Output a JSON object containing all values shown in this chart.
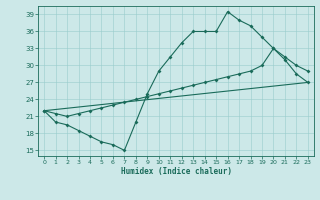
{
  "xlabel": "Humidex (Indice chaleur)",
  "xlim": [
    -0.5,
    23.5
  ],
  "ylim": [
    14,
    40.5
  ],
  "yticks": [
    15,
    18,
    21,
    24,
    27,
    30,
    33,
    36,
    39
  ],
  "xticks": [
    0,
    1,
    2,
    3,
    4,
    5,
    6,
    7,
    8,
    9,
    10,
    11,
    12,
    13,
    14,
    15,
    16,
    17,
    18,
    19,
    20,
    21,
    22,
    23
  ],
  "bg_color": "#cce8e8",
  "grid_color": "#99cccc",
  "line_color": "#1a6b5a",
  "line1_x": [
    0,
    1,
    2,
    3,
    4,
    5,
    6,
    7,
    8,
    9,
    10,
    11,
    12,
    13,
    14,
    15,
    16,
    17,
    18,
    19,
    20,
    21,
    22,
    23
  ],
  "line1_y": [
    22,
    20,
    19.5,
    18.5,
    17.5,
    16.5,
    16.0,
    15.0,
    20.0,
    25.0,
    29.0,
    31.5,
    34.0,
    36.0,
    36.0,
    36.0,
    39.5,
    38.0,
    37.0,
    35.0,
    33.0,
    31.0,
    28.5,
    27.0
  ],
  "line2_x": [
    0,
    23
  ],
  "line2_y": [
    22,
    27
  ],
  "line3_x": [
    0,
    1,
    2,
    3,
    4,
    5,
    6,
    7,
    8,
    9,
    10,
    11,
    12,
    13,
    14,
    15,
    16,
    17,
    18,
    19,
    20,
    21,
    22,
    23
  ],
  "line3_y": [
    22.0,
    21.5,
    21.0,
    21.5,
    22.0,
    22.5,
    23.0,
    23.5,
    24.0,
    24.5,
    25.0,
    25.5,
    26.0,
    26.5,
    27.0,
    27.5,
    28.0,
    28.5,
    29.0,
    30.0,
    33.0,
    31.5,
    30.0,
    29.0
  ],
  "figsize": [
    3.2,
    2.0
  ],
  "dpi": 100
}
